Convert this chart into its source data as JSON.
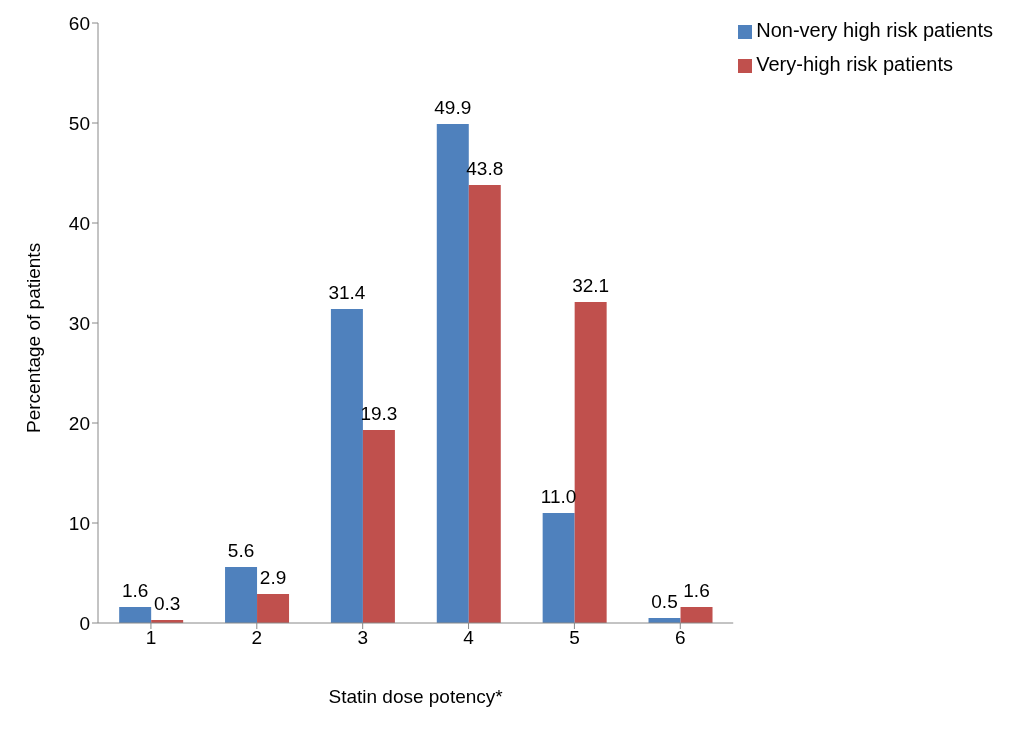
{
  "chart_data": {
    "type": "bar",
    "xlabel": "Statin dose potency*",
    "ylabel": "Percentage of patients",
    "categories": [
      "1",
      "2",
      "3",
      "4",
      "5",
      "6"
    ],
    "series": [
      {
        "name": "Non-very high risk patients",
        "color": "#4f81bd",
        "values": [
          1.6,
          5.6,
          31.4,
          49.9,
          11.0,
          0.5
        ],
        "value_labels": [
          "1.6",
          "5.6",
          "31.4",
          "49.9",
          "11.0",
          "0.5"
        ]
      },
      {
        "name": "Very-high risk patients",
        "color": "#c0504d",
        "values": [
          0.3,
          2.9,
          19.3,
          43.8,
          32.1,
          1.6
        ],
        "value_labels": [
          "0.3",
          "2.9",
          "19.3",
          "43.8",
          "32.1",
          "1.6"
        ]
      }
    ],
    "ylim": [
      0,
      60
    ],
    "yticks": [
      0,
      10,
      20,
      30,
      40,
      50,
      60
    ],
    "grid": false,
    "legend": "top right"
  }
}
